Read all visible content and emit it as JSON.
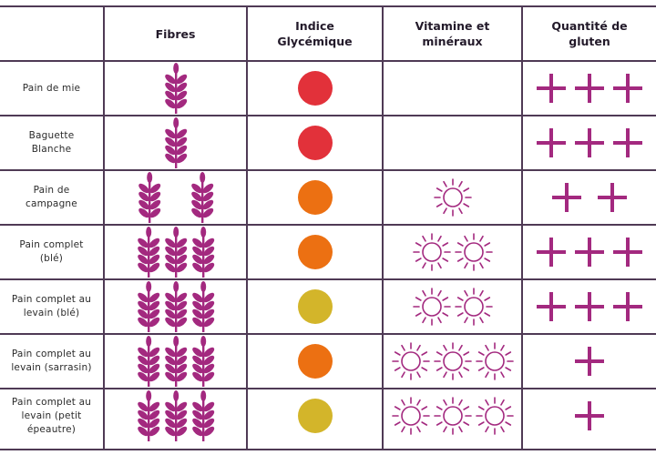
{
  "table": {
    "headers": {
      "fibres": "Fibres",
      "indice": "Indice\nGlycémique",
      "vitamine": "Vitamine et\nminéraux",
      "gluten": "Quantité de\ngluten"
    },
    "colors": {
      "icon": "#a3297f",
      "grid": "#4f3a55",
      "red": "#e2313a",
      "orange": "#ec7012",
      "yellow": "#d3b52a"
    },
    "rows": [
      {
        "label": "Pain de mie",
        "fibres": 1,
        "indice": "red",
        "vitamines": 0,
        "gluten": 3
      },
      {
        "label": "Baguette\nBlanche",
        "fibres": 1,
        "indice": "red",
        "vitamines": 0,
        "gluten": 3
      },
      {
        "label": "Pain de\ncampagne",
        "fibres": 2,
        "indice": "orange",
        "vitamines": 1,
        "gluten": 2
      },
      {
        "label": "Pain complet\n(blé)",
        "fibres": 3,
        "indice": "orange",
        "vitamines": 2,
        "gluten": 3
      },
      {
        "label": "Pain complet au\nlevain (blé)",
        "fibres": 3,
        "indice": "yellow",
        "vitamines": 2,
        "gluten": 3
      },
      {
        "label": "Pain complet au\nlevain (sarrasin)",
        "fibres": 3,
        "indice": "orange",
        "vitamines": 3,
        "gluten": 1
      },
      {
        "label": "Pain complet au\nlevain (petit\népeautre)",
        "fibres": 3,
        "indice": "yellow",
        "vitamines": 3,
        "gluten": 1
      }
    ]
  }
}
